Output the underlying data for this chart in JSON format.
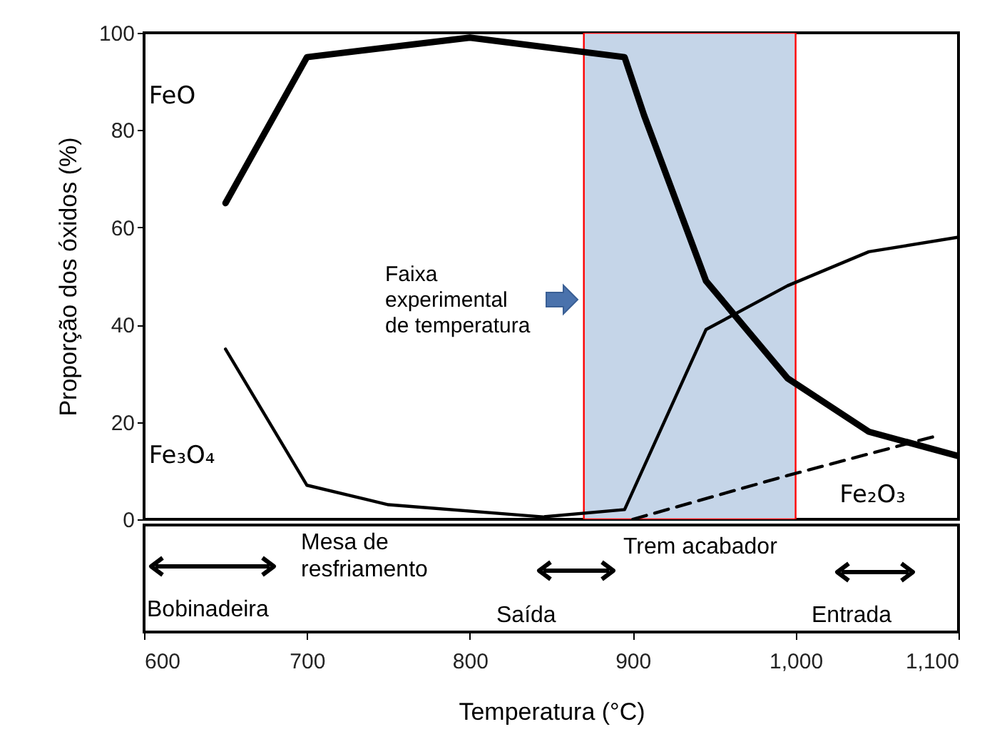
{
  "chart_data": {
    "type": "line",
    "xlabel": "Temperatura (°C)",
    "ylabel": "Proporção dos óxidos (%)",
    "xlim": [
      600,
      1100
    ],
    "ylim": [
      0,
      100
    ],
    "xticks": [
      600,
      700,
      800,
      900,
      {
        "value": 1000,
        "label": "1,000"
      },
      {
        "value": 1100,
        "label": "1,100"
      }
    ],
    "yticks": [
      0,
      20,
      40,
      60,
      80,
      100
    ],
    "grid": false,
    "series": [
      {
        "name": "FeO",
        "color": "#000000",
        "x": [
          650,
          700,
          800,
          895,
          907,
          945,
          995,
          1045,
          1100
        ],
        "values": [
          65,
          95,
          99,
          95,
          83,
          49,
          29,
          18,
          13
        ]
      },
      {
        "name": "Fe₃O₄",
        "color": "#000000",
        "x": [
          650,
          700,
          750,
          845,
          895,
          945,
          995,
          1045,
          1100
        ],
        "values": [
          35,
          7,
          3,
          0.5,
          2,
          39,
          48,
          55,
          58
        ]
      },
      {
        "name": "Fe₂O₃",
        "color": "#000000",
        "line_style": "dashed",
        "x": [
          900,
          995,
          1085
        ],
        "values": [
          0,
          9,
          17
        ]
      }
    ],
    "bands": [
      {
        "axis": "x",
        "from": 870,
        "to": 1000,
        "label": "Faixa experimental de temperatura",
        "color": "#c5d5e8"
      }
    ],
    "annotations": [
      "Mesa de resfriamento",
      "Trem acabador",
      "Bobinadeira",
      "Saída",
      "Entrada"
    ]
  }
}
